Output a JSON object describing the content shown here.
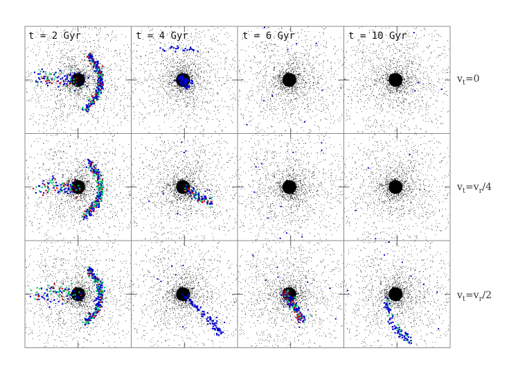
{
  "figure": {
    "columns": [
      {
        "label": "t = 2 Gyr"
      },
      {
        "label": "t = 4 Gyr"
      },
      {
        "label": "t = 6 Gyr"
      },
      {
        "label": "t = 10 Gyr"
      }
    ],
    "rows": [
      {
        "label": "v_t=0",
        "label_main": "v",
        "label_sub": "t",
        "label_rest": "=0"
      },
      {
        "label": "v_t=v_r/4",
        "label_main": "v",
        "label_sub": "t",
        "label_rest": "=v",
        "label_sub2": "r",
        "label_rest2": "/4"
      },
      {
        "label": "v_t=v_r/2",
        "label_main": "v",
        "label_sub": "t",
        "label_rest": "=v",
        "label_sub2": "r",
        "label_rest2": "/2"
      }
    ],
    "colors": {
      "halo": "#000000",
      "frame": "#888888",
      "stream_low": "#0000cc",
      "stream_mid": "#00cc66",
      "stream_high": "#cc0000"
    }
  }
}
